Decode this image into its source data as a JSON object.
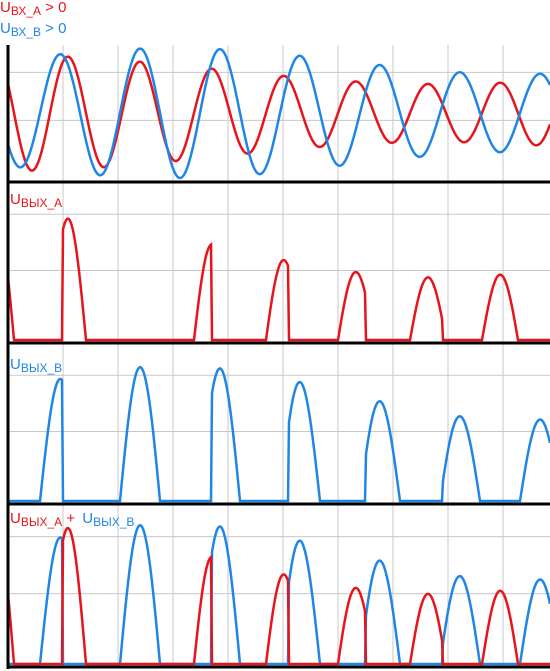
{
  "panels": [
    {
      "labels": [
        {
          "main": "U",
          "sub": "ВХ_A",
          "rest": " > 0",
          "color": "#e8141c"
        },
        {
          "main": "U",
          "sub": "ВХ_B",
          "rest": " > 0",
          "color": "#1f86e6"
        }
      ]
    },
    {
      "labels": [
        {
          "main": "U",
          "sub": "ВЫХ_A",
          "color": "#e8141c"
        }
      ]
    },
    {
      "labels": [
        {
          "main": "U",
          "sub": "ВЫХ_B",
          "color": "#1f86e6"
        }
      ]
    },
    {
      "labels": [
        {
          "main": "U",
          "sub": "ВЫХ_A",
          "rest": " + ",
          "color": "#e8141c"
        },
        {
          "main": "U",
          "sub": "ВЫХ_B",
          "color": "#1f86e6"
        }
      ]
    }
  ]
}
